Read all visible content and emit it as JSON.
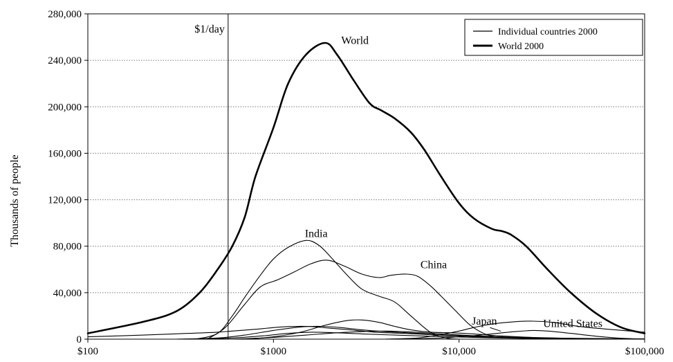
{
  "chart_data": {
    "type": "line",
    "title": "",
    "xlabel": "",
    "ylabel": "Thousands of people",
    "x_scale": "log",
    "xlim": [
      100,
      100000
    ],
    "ylim": [
      0,
      280000
    ],
    "grid": "horizontal dotted",
    "x_ticks": [
      100,
      1000,
      10000,
      100000
    ],
    "x_tick_labels": [
      "$100",
      "$1000",
      "$10,000",
      "$100,000"
    ],
    "y_ticks": [
      0,
      40000,
      80000,
      120000,
      160000,
      200000,
      240000,
      280000
    ],
    "y_tick_labels": [
      "0",
      "40,000",
      "80,000",
      "120,000",
      "160,000",
      "200,000",
      "240,000",
      "280,000"
    ],
    "legend_position": "top-right",
    "legend": [
      {
        "label": "Individual countries 2000",
        "style": "thin"
      },
      {
        "label": "World 2000",
        "style": "thick"
      }
    ],
    "reference_line": {
      "x": 570,
      "label": "$1/day"
    },
    "series": [
      {
        "name": "World",
        "style": "thick",
        "points": [
          [
            100,
            5000
          ],
          [
            200,
            15000
          ],
          [
            300,
            24000
          ],
          [
            400,
            40000
          ],
          [
            500,
            60000
          ],
          [
            600,
            80000
          ],
          [
            700,
            105000
          ],
          [
            800,
            140000
          ],
          [
            1000,
            182000
          ],
          [
            1200,
            220000
          ],
          [
            1500,
            245000
          ],
          [
            1900,
            255000
          ],
          [
            2200,
            245000
          ],
          [
            2700,
            223000
          ],
          [
            3300,
            203000
          ],
          [
            3800,
            197000
          ],
          [
            4500,
            190000
          ],
          [
            5500,
            178000
          ],
          [
            6500,
            163000
          ],
          [
            8000,
            140000
          ],
          [
            10000,
            117000
          ],
          [
            12000,
            104000
          ],
          [
            15000,
            95000
          ],
          [
            17000,
            93000
          ],
          [
            19000,
            90000
          ],
          [
            23000,
            80000
          ],
          [
            30000,
            60000
          ],
          [
            40000,
            40000
          ],
          [
            55000,
            22000
          ],
          [
            75000,
            10000
          ],
          [
            100000,
            5000
          ]
        ]
      },
      {
        "name": "India",
        "style": "thin",
        "points": [
          [
            380,
            0
          ],
          [
            500,
            5000
          ],
          [
            600,
            20000
          ],
          [
            700,
            36000
          ],
          [
            850,
            55000
          ],
          [
            1000,
            69000
          ],
          [
            1200,
            79000
          ],
          [
            1500,
            85000
          ],
          [
            1750,
            81000
          ],
          [
            2000,
            72000
          ],
          [
            2500,
            55000
          ],
          [
            3000,
            43000
          ],
          [
            3700,
            37000
          ],
          [
            4500,
            32000
          ],
          [
            5500,
            20000
          ],
          [
            7000,
            6000
          ],
          [
            8500,
            1000
          ],
          [
            10000,
            0
          ]
        ]
      },
      {
        "name": "China",
        "style": "thin",
        "points": [
          [
            440,
            0
          ],
          [
            550,
            10000
          ],
          [
            700,
            30000
          ],
          [
            850,
            45000
          ],
          [
            1050,
            51000
          ],
          [
            1300,
            58000
          ],
          [
            1600,
            65000
          ],
          [
            1950,
            68000
          ],
          [
            2400,
            63000
          ],
          [
            3000,
            56000
          ],
          [
            3700,
            53000
          ],
          [
            4300,
            55000
          ],
          [
            5200,
            56000
          ],
          [
            6000,
            54000
          ],
          [
            7000,
            46000
          ],
          [
            8000,
            37000
          ],
          [
            9500,
            25000
          ],
          [
            11500,
            12000
          ],
          [
            14000,
            4000
          ],
          [
            17000,
            1000
          ]
        ]
      },
      {
        "name": "United States",
        "style": "thin",
        "points": [
          [
            4000,
            0
          ],
          [
            6000,
            1000
          ],
          [
            8000,
            4000
          ],
          [
            10000,
            7000
          ],
          [
            12000,
            10000
          ],
          [
            15000,
            13000
          ],
          [
            20000,
            15000
          ],
          [
            25000,
            15500
          ],
          [
            32000,
            14500
          ],
          [
            40000,
            12000
          ],
          [
            50000,
            10000
          ],
          [
            70000,
            8000
          ],
          [
            100000,
            6000
          ]
        ]
      },
      {
        "name": "Japan",
        "style": "thin",
        "points": [
          [
            5000,
            0
          ],
          [
            8000,
            1000
          ],
          [
            11000,
            2500
          ],
          [
            15000,
            4500
          ],
          [
            20000,
            6500
          ],
          [
            25000,
            7500
          ],
          [
            30000,
            7000
          ],
          [
            40000,
            5000
          ],
          [
            55000,
            2500
          ],
          [
            75000,
            800
          ],
          [
            100000,
            0
          ]
        ]
      },
      {
        "name": "",
        "style": "thin",
        "points": [
          [
            100,
            2000
          ],
          [
            200,
            3500
          ],
          [
            350,
            5000
          ],
          [
            500,
            6000
          ],
          [
            600,
            7000
          ],
          [
            800,
            8500
          ],
          [
            1100,
            10500
          ],
          [
            1500,
            11000
          ],
          [
            2000,
            9500
          ],
          [
            2800,
            7500
          ],
          [
            3500,
            6000
          ],
          [
            5000,
            5000
          ],
          [
            8000,
            3500
          ],
          [
            15000,
            2000
          ],
          [
            30000,
            1000
          ],
          [
            60000,
            500
          ],
          [
            100000,
            300
          ]
        ]
      },
      {
        "name": "",
        "style": "thin",
        "points": [
          [
            300,
            0
          ],
          [
            500,
            1000
          ],
          [
            700,
            3500
          ],
          [
            1000,
            7500
          ],
          [
            1400,
            10500
          ],
          [
            1800,
            11000
          ],
          [
            2300,
            10000
          ],
          [
            3000,
            8000
          ],
          [
            4000,
            6500
          ],
          [
            6000,
            5000
          ],
          [
            9000,
            3000
          ],
          [
            15000,
            1500
          ],
          [
            30000,
            500
          ],
          [
            100000,
            0
          ]
        ]
      },
      {
        "name": "",
        "style": "thin",
        "points": [
          [
            400,
            0
          ],
          [
            600,
            1000
          ],
          [
            900,
            3000
          ],
          [
            1200,
            5000
          ],
          [
            1600,
            6000
          ],
          [
            2200,
            5500
          ],
          [
            3000,
            4500
          ],
          [
            4500,
            3500
          ],
          [
            7000,
            2500
          ],
          [
            12000,
            1500
          ],
          [
            25000,
            500
          ],
          [
            60000,
            100
          ],
          [
            100000,
            0
          ]
        ]
      },
      {
        "name": "",
        "style": "thin",
        "points": [
          [
            700,
            0
          ],
          [
            1000,
            2000
          ],
          [
            1400,
            6000
          ],
          [
            1900,
            12000
          ],
          [
            2500,
            16000
          ],
          [
            3000,
            16500
          ],
          [
            3700,
            14500
          ],
          [
            4500,
            11000
          ],
          [
            5500,
            8000
          ],
          [
            7000,
            6000
          ],
          [
            9000,
            5500
          ],
          [
            12000,
            4500
          ],
          [
            16000,
            3000
          ],
          [
            25000,
            1500
          ],
          [
            45000,
            500
          ],
          [
            100000,
            0
          ]
        ]
      },
      {
        "name": "",
        "style": "thin",
        "points": [
          [
            600,
            0
          ],
          [
            1000,
            1500
          ],
          [
            1500,
            3500
          ],
          [
            2200,
            5500
          ],
          [
            3000,
            6500
          ],
          [
            4000,
            7000
          ],
          [
            5000,
            6500
          ],
          [
            6500,
            5500
          ],
          [
            9000,
            4000
          ],
          [
            14000,
            2500
          ],
          [
            25000,
            1000
          ],
          [
            50000,
            300
          ],
          [
            100000,
            0
          ]
        ]
      }
    ],
    "annotations": [
      {
        "text": "World",
        "x": 2750,
        "y": 254000
      },
      {
        "text": "India",
        "x": 1700,
        "y": 88000
      },
      {
        "text": "China",
        "x": 7300,
        "y": 61000
      },
      {
        "text": "Japan",
        "x": 13700,
        "y": 12500
      },
      {
        "text": "United States",
        "x": 41000,
        "y": 10500
      }
    ]
  }
}
